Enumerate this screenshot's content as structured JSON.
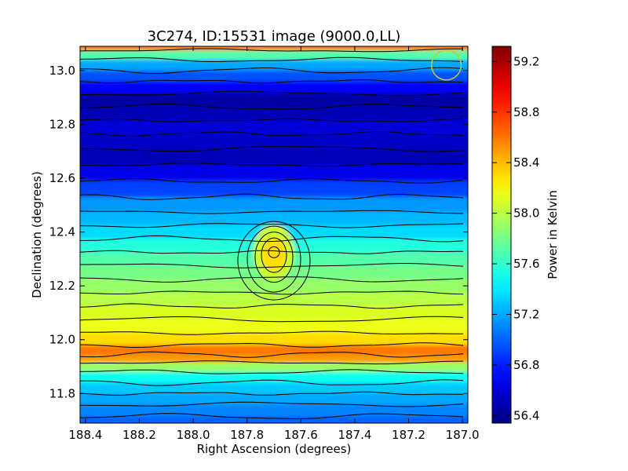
{
  "chart_data": {
    "type": "heatmap",
    "title": "3C274, ID:15531 image (9000.0,LL)",
    "xlabel": "Right Ascension (degrees)",
    "ylabel": "Declination (degrees)",
    "xlim": [
      188.42,
      186.98
    ],
    "ylim": [
      11.69,
      13.09
    ],
    "x_ticks": [
      "188.4",
      "188.2",
      "188.0",
      "187.8",
      "187.6",
      "187.4",
      "187.2",
      "187.0"
    ],
    "y_ticks": [
      "11.8",
      "12.0",
      "12.2",
      "12.4",
      "12.6",
      "12.8",
      "13.0"
    ],
    "colorbar": {
      "label": "Power in Kelvin",
      "range": [
        56.34,
        59.32
      ],
      "ticks": [
        "56.4",
        "56.8",
        "57.2",
        "57.6",
        "58.0",
        "58.4",
        "58.8",
        "59.2"
      ],
      "colormap": "jet"
    },
    "rows": [
      {
        "dec": 13.09,
        "kelvin": 58.6
      },
      {
        "dec": 13.06,
        "kelvin": 57.7
      },
      {
        "dec": 13.02,
        "kelvin": 57.2
      },
      {
        "dec": 12.98,
        "kelvin": 56.95
      },
      {
        "dec": 12.94,
        "kelvin": 56.7
      },
      {
        "dec": 12.89,
        "kelvin": 56.45
      },
      {
        "dec": 12.84,
        "kelvin": 56.5
      },
      {
        "dec": 12.79,
        "kelvin": 56.6
      },
      {
        "dec": 12.74,
        "kelvin": 56.55
      },
      {
        "dec": 12.68,
        "kelvin": 56.5
      },
      {
        "dec": 12.62,
        "kelvin": 56.65
      },
      {
        "dec": 12.56,
        "kelvin": 56.9
      },
      {
        "dec": 12.5,
        "kelvin": 57.15
      },
      {
        "dec": 12.45,
        "kelvin": 57.25
      },
      {
        "dec": 12.4,
        "kelvin": 57.35
      },
      {
        "dec": 12.35,
        "kelvin": 57.55
      },
      {
        "dec": 12.3,
        "kelvin": 57.7
      },
      {
        "dec": 12.25,
        "kelvin": 57.8
      },
      {
        "dec": 12.2,
        "kelvin": 57.9
      },
      {
        "dec": 12.15,
        "kelvin": 58.0
      },
      {
        "dec": 12.1,
        "kelvin": 58.1
      },
      {
        "dec": 12.05,
        "kelvin": 58.15
      },
      {
        "dec": 12.0,
        "kelvin": 58.3
      },
      {
        "dec": 11.96,
        "kelvin": 58.6
      },
      {
        "dec": 11.93,
        "kelvin": 58.5
      },
      {
        "dec": 11.9,
        "kelvin": 57.9
      },
      {
        "dec": 11.86,
        "kelvin": 57.5
      },
      {
        "dec": 11.82,
        "kelvin": 57.3
      },
      {
        "dec": 11.78,
        "kelvin": 57.2
      },
      {
        "dec": 11.74,
        "kelvin": 57.1
      },
      {
        "dec": 11.69,
        "kelvin": 57.0
      }
    ],
    "features": [
      {
        "name": "source-peak",
        "ra": 187.7,
        "dec": 12.33,
        "kelvin": 58.3
      },
      {
        "name": "beam-circle",
        "ra": 187.06,
        "dec": 13.02,
        "radius_deg": 0.055,
        "color": "#c8c832"
      }
    ],
    "contour_color": "#000000",
    "grid": false
  }
}
